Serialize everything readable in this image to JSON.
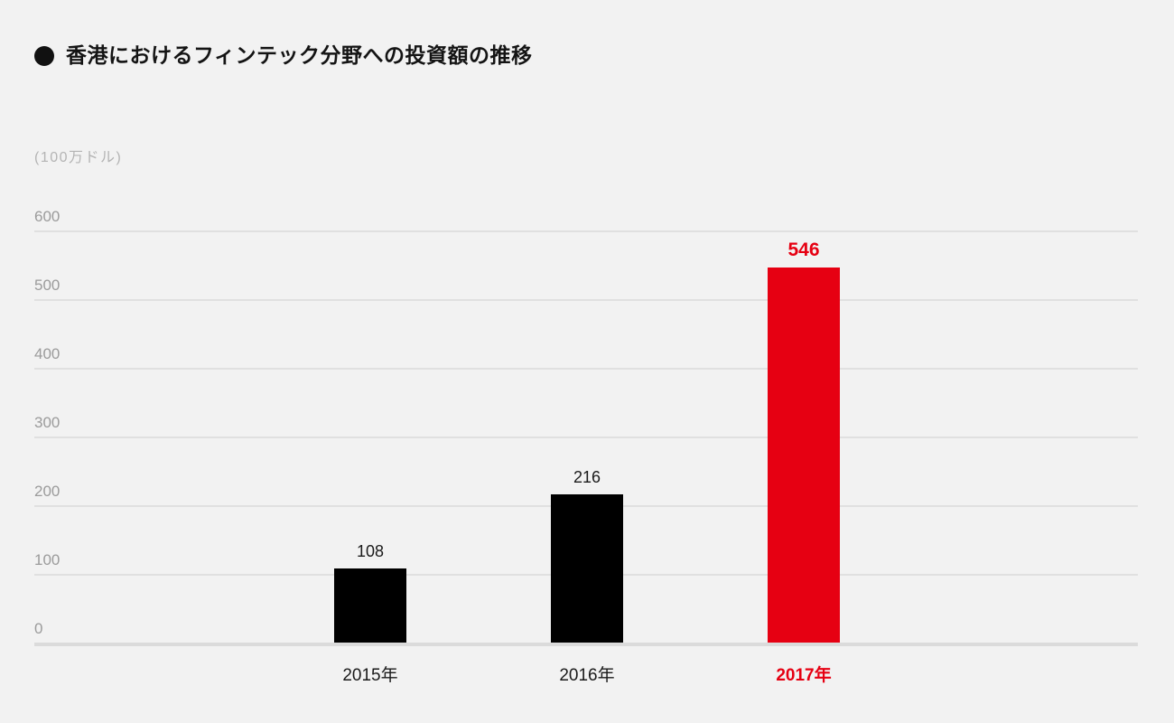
{
  "title": {
    "bullet_icon": "filled-circle",
    "text": "香港におけるフィンテック分野への投資額の推移"
  },
  "chart_data": {
    "type": "bar",
    "title": "香港におけるフィンテック分野への投資額の推移",
    "unit_label": "(100万ドル)",
    "ylabel": "(100万ドル)",
    "xlabel": "",
    "categories": [
      "2015年",
      "2016年",
      "2017年"
    ],
    "values": [
      108,
      216,
      546
    ],
    "yticks": [
      0,
      100,
      200,
      300,
      400,
      500,
      600
    ],
    "ylim": [
      0,
      600
    ],
    "grid": true,
    "legend": false,
    "bar_colors": [
      "#000000",
      "#000000",
      "#e60012"
    ],
    "value_label_colors": [
      "#1a1a1a",
      "#1a1a1a",
      "#e60012"
    ],
    "category_label_colors": [
      "#1a1a1a",
      "#1a1a1a",
      "#e60012"
    ],
    "highlight_index": 2
  },
  "colors": {
    "background": "#f2f2f2",
    "title_text": "#141414",
    "axis_text": "#9b9b9b",
    "unit_text": "#b4b4b4",
    "gridline": "#e0e0e0",
    "baseline": "#dbdbdb",
    "accent_red": "#e60012",
    "bar_black": "#000000"
  }
}
